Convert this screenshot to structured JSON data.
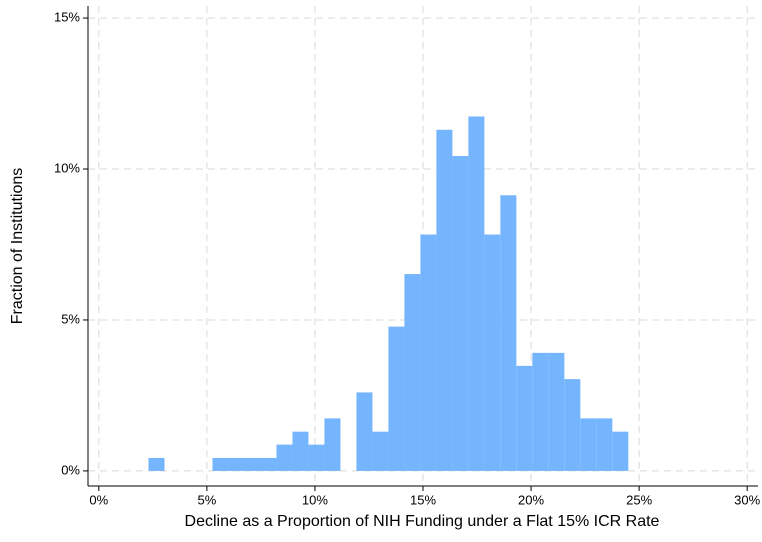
{
  "chart_data": {
    "type": "histogram",
    "x_label": "Decline as a Proportion of NIH Funding under a Flat 15% ICR Rate",
    "y_label": "Fraction of Institutions",
    "bins": [
      2.3,
      3.04,
      3.78,
      4.52,
      5.26,
      6.0,
      6.74,
      7.48,
      8.22,
      8.96,
      9.7,
      10.44,
      11.18,
      11.92,
      12.66,
      13.4,
      14.14,
      14.88,
      15.62,
      16.36,
      17.1,
      17.84,
      18.58,
      19.32,
      20.06,
      20.8,
      21.54,
      22.28,
      23.02,
      23.76,
      24.5
    ],
    "values": [
      0.43,
      0,
      0,
      0,
      0.43,
      0.43,
      0.43,
      0.43,
      0.87,
      1.3,
      0.87,
      1.74,
      0,
      2.6,
      1.3,
      4.78,
      6.52,
      7.83,
      11.3,
      10.43,
      11.74,
      7.83,
      9.13,
      3.48,
      3.91,
      3.91,
      3.04,
      1.74,
      1.74,
      1.3
    ],
    "color": "#75b5fd",
    "xlim": [
      -0.5,
      30.5
    ],
    "ylim": [
      -0.5,
      15.4
    ],
    "xticks": [
      {
        "value": 0,
        "label": "0%"
      },
      {
        "value": 5,
        "label": "5%"
      },
      {
        "value": 10,
        "label": "10%"
      },
      {
        "value": 15,
        "label": "15%"
      },
      {
        "value": 20,
        "label": "20%"
      },
      {
        "value": 25,
        "label": "25%"
      },
      {
        "value": 30,
        "label": "30%"
      }
    ],
    "yticks": [
      {
        "value": 0,
        "label": "0%"
      },
      {
        "value": 5,
        "label": "5%"
      },
      {
        "value": 10,
        "label": "10%"
      },
      {
        "value": 15,
        "label": "15%"
      }
    ],
    "grid": true
  }
}
